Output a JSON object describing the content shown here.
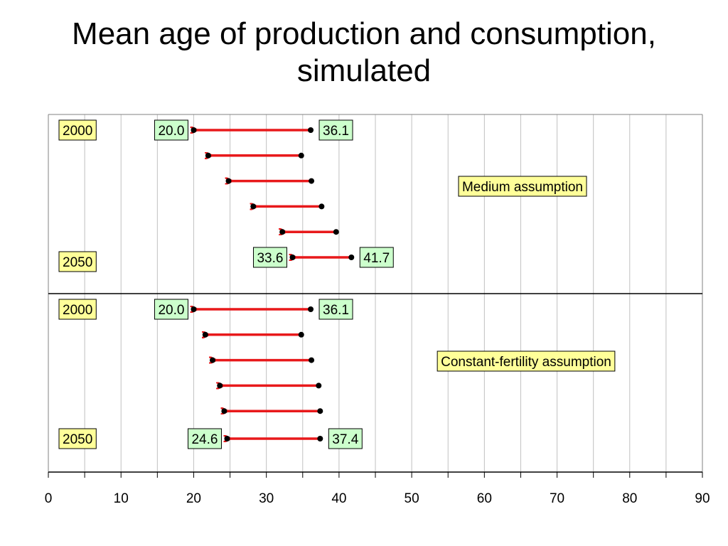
{
  "title_line1": "Mean age of production and consumption,",
  "title_line2": "simulated",
  "colors": {
    "arrow": "#e8191b",
    "dot": "#000000",
    "year_box": "#ffff99",
    "value_box": "#ccffcc",
    "grid": "#c0c0c0"
  },
  "chart_data": {
    "type": "dumbbell-arrow",
    "title": "Mean age of production and consumption, simulated",
    "xlim": [
      0,
      90
    ],
    "x_ticks": [
      0,
      10,
      20,
      30,
      40,
      50,
      60,
      70,
      80,
      90
    ],
    "grid": true,
    "panels": [
      {
        "name": "Medium assumption",
        "first_year": "2000",
        "last_year": "2050",
        "rows": [
          {
            "consumption": 20.0,
            "production": 36.1,
            "consumption_label": "20.0",
            "production_label": "36.1"
          },
          {
            "consumption": 22.0,
            "production": 34.8
          },
          {
            "consumption": 24.8,
            "production": 36.2
          },
          {
            "consumption": 28.2,
            "production": 37.6
          },
          {
            "consumption": 32.2,
            "production": 39.6
          },
          {
            "consumption": 33.6,
            "production": 41.7,
            "consumption_label": "33.6",
            "production_label": "41.7"
          }
        ]
      },
      {
        "name": "Constant-fertility assumption",
        "first_year": "2000",
        "last_year": "2050",
        "rows": [
          {
            "consumption": 20.0,
            "production": 36.1,
            "consumption_label": "20.0",
            "production_label": "36.1"
          },
          {
            "consumption": 21.6,
            "production": 34.8
          },
          {
            "consumption": 22.6,
            "production": 36.2
          },
          {
            "consumption": 23.6,
            "production": 37.2
          },
          {
            "consumption": 24.2,
            "production": 37.4
          },
          {
            "consumption": 24.6,
            "production": 37.4,
            "consumption_label": "24.6",
            "production_label": "37.4"
          }
        ]
      }
    ]
  }
}
